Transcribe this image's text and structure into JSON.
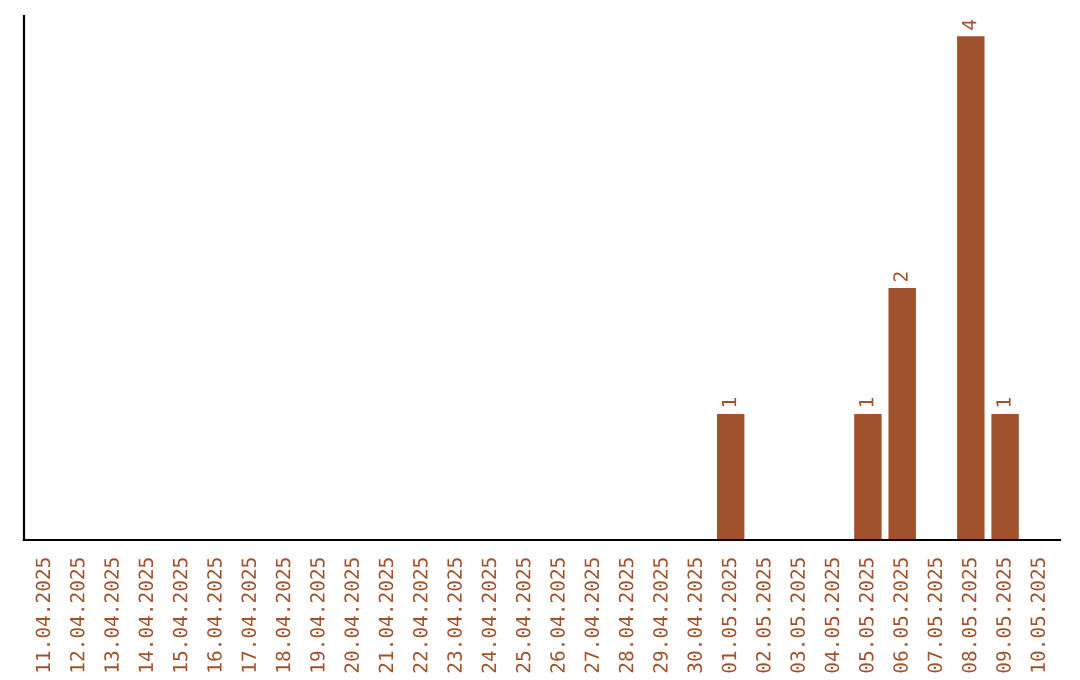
{
  "chart_data": {
    "type": "bar",
    "categories": [
      "11.04.2025",
      "12.04.2025",
      "13.04.2025",
      "14.04.2025",
      "15.04.2025",
      "16.04.2025",
      "17.04.2025",
      "18.04.2025",
      "19.04.2025",
      "20.04.2025",
      "21.04.2025",
      "22.04.2025",
      "23.04.2025",
      "24.04.2025",
      "25.04.2025",
      "26.04.2025",
      "27.04.2025",
      "28.04.2025",
      "29.04.2025",
      "30.04.2025",
      "01.05.2025",
      "02.05.2025",
      "03.05.2025",
      "04.05.2025",
      "05.05.2025",
      "06.05.2025",
      "07.05.2025",
      "08.05.2025",
      "09.05.2025",
      "10.05.2025"
    ],
    "values": [
      null,
      null,
      null,
      null,
      null,
      null,
      null,
      null,
      null,
      null,
      null,
      null,
      null,
      null,
      null,
      null,
      null,
      null,
      null,
      null,
      1,
      null,
      null,
      null,
      1,
      2,
      null,
      4,
      1,
      null
    ],
    "data_labels": true,
    "color": "#a0522d",
    "grid": false,
    "legend": false
  }
}
